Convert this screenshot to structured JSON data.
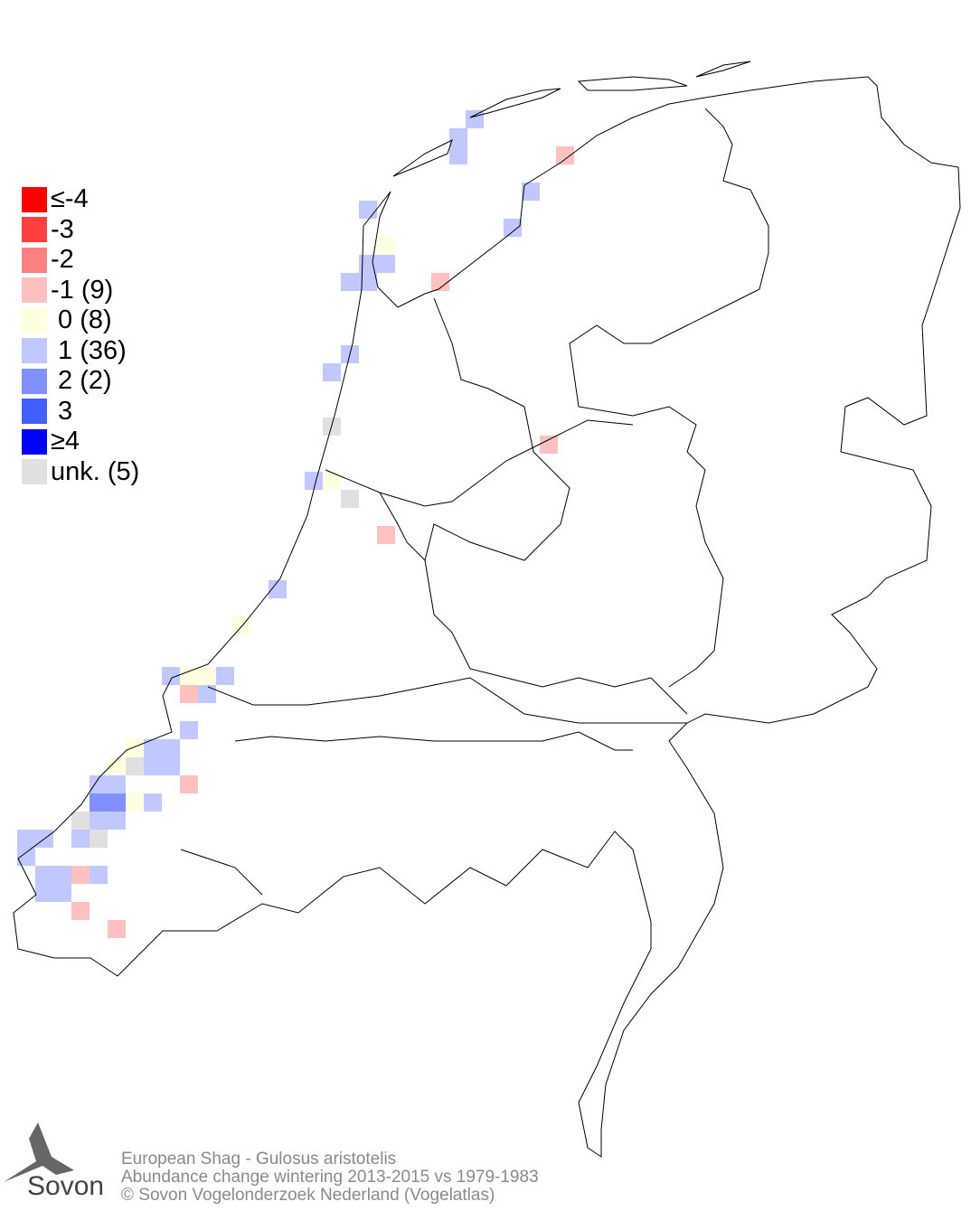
{
  "legend": [
    {
      "label": "≤-4",
      "color": "#ff0000"
    },
    {
      "label": "-3",
      "color": "#ff4040"
    },
    {
      "label": "-2",
      "color": "#ff8080"
    },
    {
      "label": "-1 (9)",
      "color": "#ffc0c0"
    },
    {
      "label": " 0 (8)",
      "color": "#ffffe0"
    },
    {
      "label": " 1 (36)",
      "color": "#c0c8ff"
    },
    {
      "label": " 2 (2)",
      "color": "#8090ff"
    },
    {
      "label": " 3",
      "color": "#4060ff"
    },
    {
      "label": "≥4",
      "color": "#0000ff"
    },
    {
      "label": "unk. (5)",
      "color": "#e0e0e0"
    }
  ],
  "footer": {
    "species": "European Shag - Gulosus aristotelis",
    "subtitle": "Abundance change wintering  2013-2015 vs 1979-1983",
    "copyright": "© Sovon Vogelonderzoek Nederland (Vogelatlas)"
  },
  "logo": {
    "text": "Sovon"
  }
}
